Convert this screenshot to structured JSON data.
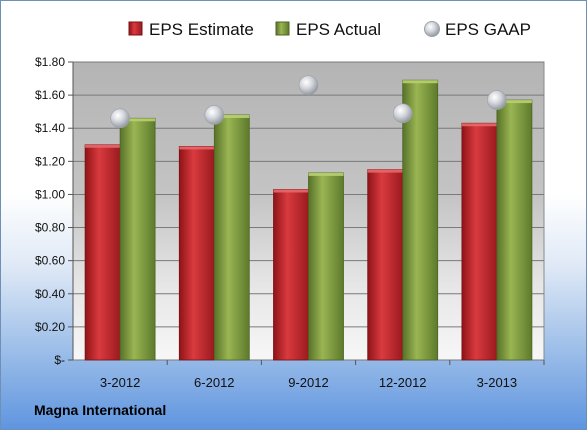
{
  "chart_data": {
    "type": "bar",
    "categories": [
      "3-2012",
      "6-2012",
      "9-2012",
      "12-2012",
      "3-2013"
    ],
    "series": [
      {
        "name": "EPS Estimate",
        "kind": "bar",
        "color": "#c8262c",
        "values": [
          1.3,
          1.29,
          1.03,
          1.15,
          1.43
        ]
      },
      {
        "name": "EPS Actual",
        "kind": "bar",
        "color": "#7e9a3b",
        "values": [
          1.46,
          1.48,
          1.13,
          1.69,
          1.57
        ]
      },
      {
        "name": "EPS GAAP",
        "kind": "scatter",
        "color": "#b8bcc4",
        "values": [
          1.46,
          1.48,
          1.66,
          1.49,
          1.57
        ]
      }
    ],
    "ylim": [
      0,
      1.8
    ],
    "yticks": [
      {
        "value": 0,
        "label": "$-"
      },
      {
        "value": 0.2,
        "label": "$0.20"
      },
      {
        "value": 0.4,
        "label": "$0.40"
      },
      {
        "value": 0.6,
        "label": "$0.60"
      },
      {
        "value": 0.8,
        "label": "$0.80"
      },
      {
        "value": 1.0,
        "label": "$1.00"
      },
      {
        "value": 1.2,
        "label": "$1.20"
      },
      {
        "value": 1.4,
        "label": "$1.40"
      },
      {
        "value": 1.6,
        "label": "$1.60"
      },
      {
        "value": 1.8,
        "label": "$1.80"
      }
    ],
    "grid": true,
    "legend": "top"
  },
  "footer": {
    "company": "Magna International"
  }
}
